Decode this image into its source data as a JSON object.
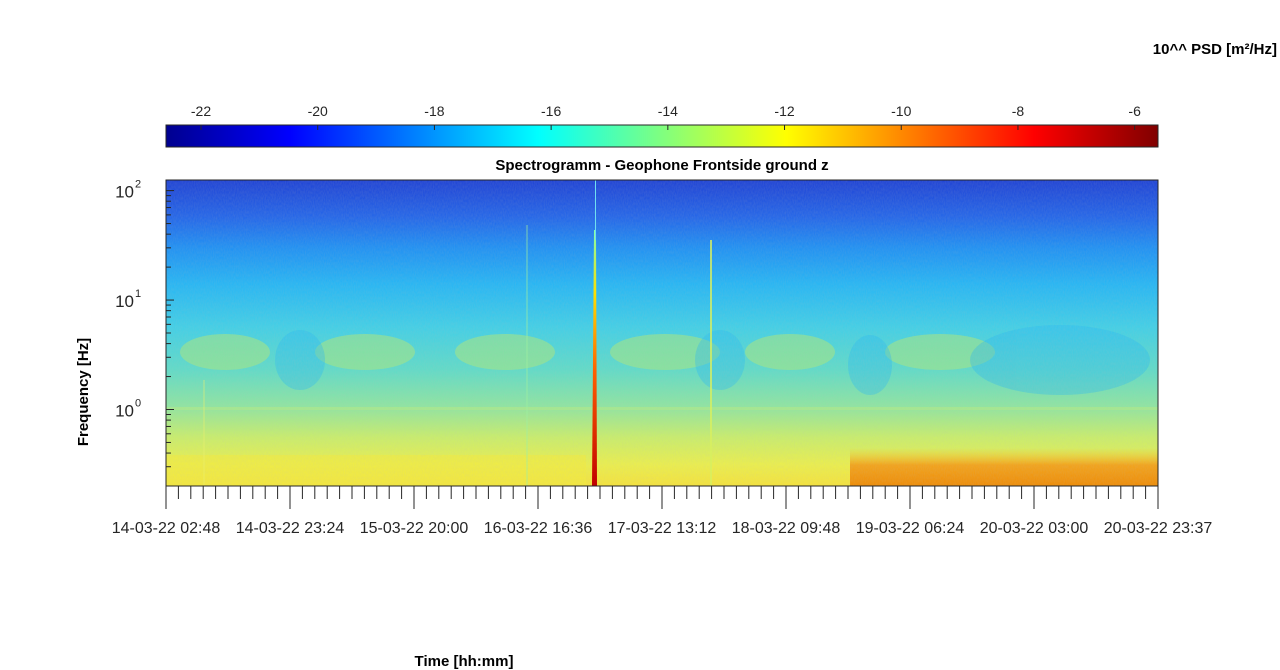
{
  "chart_data": {
    "type": "heatmap",
    "title": "Spectrogramm - Geophone Frontside ground z",
    "xlabel": "Time [hh:mm]",
    "ylabel": "Frequency [Hz]",
    "colorbar": {
      "label": "10^^ PSD [m²/Hz]",
      "colormap": "jet",
      "position": "top",
      "clim": [
        -22.6,
        -5.6
      ],
      "ticks": [
        -22,
        -20,
        -18,
        -16,
        -14,
        -12,
        -10,
        -8,
        -6
      ],
      "tick_labels": [
        "-22",
        "-20",
        "-18",
        "-16",
        "-14",
        "-12",
        "-10",
        "-8",
        "-6"
      ]
    },
    "x_axis": {
      "range": [
        "14-03-22 02:48",
        "20-03-22 23:37"
      ],
      "tick_labels": [
        "14-03-22 02:48",
        "14-03-22 23:24",
        "15-03-22 20:00",
        "16-03-22 16:36",
        "17-03-22 13:12",
        "18-03-22 09:48",
        "19-03-22 06:24",
        "20-03-22 03:00",
        "20-03-22 23:37"
      ]
    },
    "y_axis": {
      "scale": "log",
      "range": [
        0.2,
        125
      ],
      "tick_values": [
        1,
        10,
        100
      ],
      "tick_labels": [
        "10",
        "10",
        "10"
      ],
      "tick_exponents": [
        "0",
        "1",
        "2"
      ]
    },
    "grid": false,
    "features": [
      {
        "time": "17-03-22 02:30",
        "freq_range": [
          0.2,
          40
        ],
        "log_psd": -6.5
      },
      {
        "time": "18-03-22 00:10",
        "freq_range": [
          0.3,
          30
        ],
        "log_psd": -12.5
      },
      {
        "time_range": [
          "19-03-22 00:00",
          "20-03-22 23:37"
        ],
        "freq_range": [
          0.2,
          0.35
        ],
        "log_psd": -10.5
      }
    ]
  }
}
